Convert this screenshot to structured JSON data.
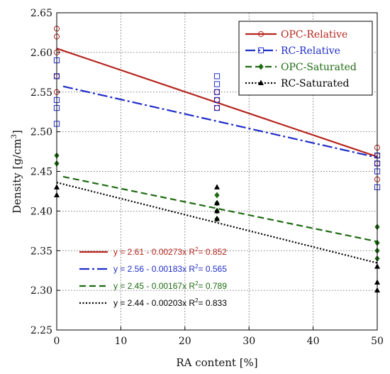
{
  "chart_data": {
    "type": "scatter",
    "xlabel": "RA content [%]",
    "ylabel_main": "Density [g/cm",
    "ylabel_sup": "3",
    "ylabel_close": "]",
    "xlim": [
      0,
      50
    ],
    "ylim": [
      2.25,
      2.65
    ],
    "xticks": [
      0,
      10,
      20,
      30,
      40,
      50
    ],
    "yticks": [
      2.25,
      2.3,
      2.35,
      2.4,
      2.45,
      2.5,
      2.55,
      2.6,
      2.65
    ],
    "grid": true,
    "legend_position": "top-right",
    "series": [
      {
        "name": "OPC-Relative",
        "color": "#b5261e",
        "marker": "circle-open",
        "line": "solid",
        "x": [
          0,
          0,
          0,
          0,
          0,
          25,
          25,
          25,
          25,
          50,
          50,
          50,
          50
        ],
        "y": [
          2.63,
          2.62,
          2.6,
          2.57,
          2.55,
          2.55,
          2.54,
          2.54,
          2.53,
          2.48,
          2.47,
          2.46,
          2.44
        ],
        "fit": {
          "intercept": 2.605,
          "slope": -0.00273,
          "x_range": [
            0,
            50
          ]
        },
        "equation": "y = 2.61 - 0.00273x",
        "r2_label": "R",
        "r2_value": "= 0.852"
      },
      {
        "name": "RC-Relative",
        "color": "#1f2dc8",
        "marker": "square-open",
        "line": "dashdot",
        "x": [
          0,
          0,
          0,
          0,
          0,
          25,
          25,
          25,
          25,
          25,
          50,
          50,
          50,
          50
        ],
        "y": [
          2.59,
          2.57,
          2.54,
          2.53,
          2.51,
          2.57,
          2.56,
          2.55,
          2.54,
          2.53,
          2.47,
          2.46,
          2.45,
          2.43
        ],
        "fit": {
          "intercept": 2.559,
          "slope": -0.00183,
          "x_range": [
            1,
            50
          ]
        },
        "equation": "y = 2.56 - 0.00183x",
        "r2_label": "R",
        "r2_value": "= 0.565"
      },
      {
        "name": "OPC-Saturated",
        "color": "#1e6b12",
        "marker": "diamond-filled",
        "line": "dashed",
        "x": [
          0,
          0,
          25,
          25,
          25,
          25,
          50,
          50,
          50,
          50
        ],
        "y": [
          2.47,
          2.46,
          2.42,
          2.41,
          2.4,
          2.39,
          2.38,
          2.36,
          2.35,
          2.34
        ],
        "fit": {
          "intercept": 2.445,
          "slope": -0.00167,
          "x_range": [
            1,
            50
          ]
        },
        "equation": "y = 2.45 - 0.00167x",
        "r2_label": "R",
        "r2_value": "= 0.789"
      },
      {
        "name": "RC-Saturated",
        "color": "#000000",
        "marker": "triangle-filled",
        "line": "dotted",
        "x": [
          0,
          0,
          25,
          25,
          25,
          25,
          50,
          50,
          50
        ],
        "y": [
          2.43,
          2.42,
          2.43,
          2.41,
          2.4,
          2.39,
          2.33,
          2.31,
          2.3
        ],
        "fit": {
          "intercept": 2.436,
          "slope": -0.00203,
          "x_range": [
            0,
            50
          ]
        },
        "equation": "y = 2.44 - 0.00203x",
        "r2_label": "R",
        "r2_value": "= 0.833"
      }
    ]
  }
}
